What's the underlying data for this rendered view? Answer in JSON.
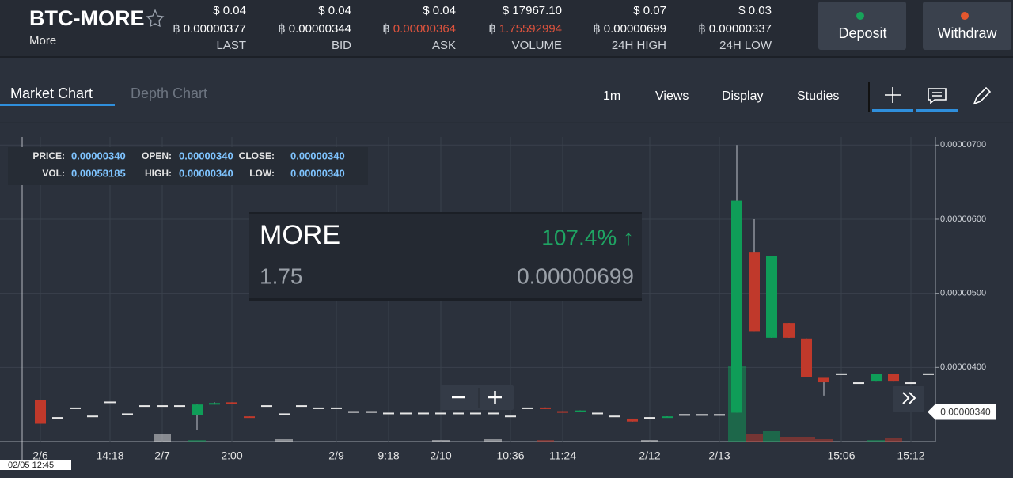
{
  "header": {
    "pair": "BTC-MORE",
    "name": "More",
    "stats": [
      {
        "usd": "$ 0.04",
        "sym": "฿",
        "btc": "0.00000377",
        "label": "LAST",
        "highlight": false
      },
      {
        "usd": "$ 0.04",
        "sym": "฿",
        "btc": "0.00000344",
        "label": "BID",
        "highlight": false
      },
      {
        "usd": "$ 0.04",
        "sym": "฿",
        "btc": "0.00000364",
        "label": "ASK",
        "highlight": true
      },
      {
        "usd": "$ 17967.10",
        "sym": "฿",
        "btc": "1.75592994",
        "label": "VOLUME",
        "highlight": true
      },
      {
        "usd": "$ 0.07",
        "sym": "฿",
        "btc": "0.00000699",
        "label": "24H HIGH",
        "highlight": false
      },
      {
        "usd": "$ 0.03",
        "sym": "฿",
        "btc": "0.00000337",
        "label": "24H LOW",
        "highlight": false
      }
    ]
  },
  "buttons": [
    "Deposit",
    "Withdraw"
  ],
  "tabs": [
    "Market Chart",
    "Depth Chart"
  ],
  "toolbar": [
    "1m",
    "Views",
    "Display",
    "Studies"
  ],
  "info": [
    {
      "label": "PRICE:",
      "value": "0.00000340"
    },
    {
      "label": "OPEN:",
      "value": "0.00000340"
    },
    {
      "label": "CLOSE:",
      "value": "0.00000340"
    },
    {
      "label": "VOL:",
      "value": "0.00058185"
    },
    {
      "label": "HIGH:",
      "value": "0.00000340"
    },
    {
      "label": "LOW:",
      "value": "0.00000340"
    }
  ],
  "overlay": {
    "symbol": "MORE",
    "change": "107.4% ↑",
    "volume": "1.75",
    "price": "0.00000699"
  },
  "chart_data": {
    "type": "candlestick",
    "categories": [
      "2/6",
      null,
      null,
      null,
      "14:18",
      null,
      null,
      "2/7",
      null,
      null,
      null,
      "2:00",
      null,
      null,
      null,
      null,
      null,
      "2/9",
      null,
      null,
      "9:18",
      null,
      null,
      "2/10",
      null,
      null,
      null,
      "10:36",
      null,
      null,
      "11:24",
      null,
      null,
      null,
      null,
      "2/12",
      null,
      null,
      null,
      "2/13",
      null,
      null,
      null,
      null,
      null,
      null,
      "15:06",
      null,
      null,
      null,
      "15:12",
      null
    ],
    "candles": [
      [
        3.56e-06,
        3.56e-06,
        3.24e-06,
        3.24e-06
      ],
      [
        3.33e-06,
        3.33e-06,
        3.33e-06,
        3.33e-06
      ],
      [
        3.46e-06,
        3.46e-06,
        3.46e-06,
        3.46e-06
      ],
      [
        3.35e-06,
        3.35e-06,
        3.35e-06,
        3.35e-06
      ],
      [
        3.54e-06,
        3.54e-06,
        3.54e-06,
        3.54e-06
      ],
      [
        3.38e-06,
        3.38e-06,
        3.38e-06,
        3.38e-06
      ],
      [
        3.49e-06,
        3.49e-06,
        3.49e-06,
        3.49e-06
      ],
      [
        3.49e-06,
        3.49e-06,
        3.49e-06,
        3.49e-06
      ],
      [
        3.49e-06,
        3.49e-06,
        3.49e-06,
        3.49e-06
      ],
      [
        3.36e-06,
        3.5e-06,
        3.16e-06,
        3.5e-06
      ],
      [
        3.5e-06,
        3.53e-06,
        3.5e-06,
        3.52e-06
      ],
      [
        3.53e-06,
        3.53e-06,
        3.51e-06,
        3.51e-06
      ],
      [
        3.34e-06,
        3.34e-06,
        3.32e-06,
        3.32e-06
      ],
      [
        3.49e-06,
        3.49e-06,
        3.49e-06,
        3.49e-06
      ],
      [
        3.38e-06,
        3.38e-06,
        3.38e-06,
        3.38e-06
      ],
      [
        3.49e-06,
        3.49e-06,
        3.49e-06,
        3.49e-06
      ],
      [
        3.46e-06,
        3.46e-06,
        3.46e-06,
        3.46e-06
      ],
      [
        3.46e-06,
        3.46e-06,
        3.46e-06,
        3.46e-06
      ],
      [
        3.41e-06,
        3.41e-06,
        3.41e-06,
        3.41e-06
      ],
      [
        3.41e-06,
        3.41e-06,
        3.41e-06,
        3.41e-06
      ],
      [
        3.39e-06,
        3.39e-06,
        3.39e-06,
        3.39e-06
      ],
      [
        3.39e-06,
        3.39e-06,
        3.39e-06,
        3.39e-06
      ],
      [
        3.39e-06,
        3.39e-06,
        3.39e-06,
        3.39e-06
      ],
      [
        3.39e-06,
        3.39e-06,
        3.39e-06,
        3.39e-06
      ],
      [
        3.39e-06,
        3.39e-06,
        3.39e-06,
        3.39e-06
      ],
      [
        3.39e-06,
        3.39e-06,
        3.39e-06,
        3.39e-06
      ],
      [
        3.39e-06,
        3.39e-06,
        3.39e-06,
        3.39e-06
      ],
      [
        3.35e-06,
        3.35e-06,
        3.35e-06,
        3.35e-06
      ],
      [
        3.46e-06,
        3.46e-06,
        3.46e-06,
        3.46e-06
      ],
      [
        3.46e-06,
        3.46e-06,
        3.44e-06,
        3.44e-06
      ],
      [
        3.41e-06,
        3.41e-06,
        3.39e-06,
        3.39e-06
      ],
      [
        3.4e-06,
        3.42e-06,
        3.4e-06,
        3.42e-06
      ],
      [
        3.39e-06,
        3.39e-06,
        3.39e-06,
        3.39e-06
      ],
      [
        3.35e-06,
        3.35e-06,
        3.35e-06,
        3.35e-06
      ],
      [
        3.31e-06,
        3.31e-06,
        3.27e-06,
        3.27e-06
      ],
      [
        3.33e-06,
        3.33e-06,
        3.33e-06,
        3.33e-06
      ],
      [
        3.32e-06,
        3.34e-06,
        3.32e-06,
        3.34e-06
      ],
      [
        3.37e-06,
        3.37e-06,
        3.37e-06,
        3.37e-06
      ],
      [
        3.37e-06,
        3.37e-06,
        3.37e-06,
        3.37e-06
      ],
      [
        3.37e-06,
        3.37e-06,
        3.37e-06,
        3.37e-06
      ],
      [
        3.39e-06,
        7e-06,
        3.39e-06,
        6.25e-06
      ],
      [
        5.55e-06,
        6e-06,
        4.49e-06,
        4.49e-06
      ],
      [
        4.4e-06,
        5.5e-06,
        4.4e-06,
        5.5e-06
      ],
      [
        4.6e-06,
        4.6e-06,
        4.4e-06,
        4.4e-06
      ],
      [
        4.39e-06,
        4.39e-06,
        3.87e-06,
        3.87e-06
      ],
      [
        3.86e-06,
        3.86e-06,
        3.62e-06,
        3.8e-06
      ],
      [
        3.92e-06,
        3.92e-06,
        3.92e-06,
        3.92e-06
      ],
      [
        3.8e-06,
        3.8e-06,
        3.8e-06,
        3.8e-06
      ],
      [
        3.81e-06,
        3.91e-06,
        3.81e-06,
        3.91e-06
      ],
      [
        3.91e-06,
        3.91e-06,
        3.81e-06,
        3.81e-06
      ],
      [
        3.8e-06,
        3.8e-06,
        3.8e-06,
        3.8e-06
      ],
      [
        3.92e-06,
        3.92e-06,
        3.92e-06,
        3.92e-06
      ]
    ],
    "volume": [
      0,
      0,
      0,
      0,
      0,
      0,
      0,
      10,
      0,
      2,
      0,
      0,
      0,
      0,
      3,
      0,
      0,
      0,
      0,
      0,
      0,
      0,
      0,
      2,
      0,
      0,
      3,
      0,
      0,
      2,
      0,
      0,
      0,
      0,
      0,
      2,
      0,
      0,
      0,
      0,
      96,
      10,
      14,
      6,
      6,
      3,
      0,
      0,
      2,
      5,
      0,
      0
    ],
    "up_color": "#0f9d58",
    "down_color": "#c0392b",
    "flat_color": "#e6e6e6",
    "ylim": [
      3e-06,
      7.11e-06
    ],
    "yticks": [
      {
        "value": 4e-06,
        "label": "0.00000400"
      },
      {
        "value": 5e-06,
        "label": "0.00000500"
      },
      {
        "value": 6e-06,
        "label": "0.00000600"
      },
      {
        "value": 7e-06,
        "label": "0.00000700"
      }
    ],
    "grid": true,
    "last_price": {
      "value": 3.4e-06,
      "label": "0.00000340"
    },
    "crosshair_time": "02/05 12:45"
  }
}
